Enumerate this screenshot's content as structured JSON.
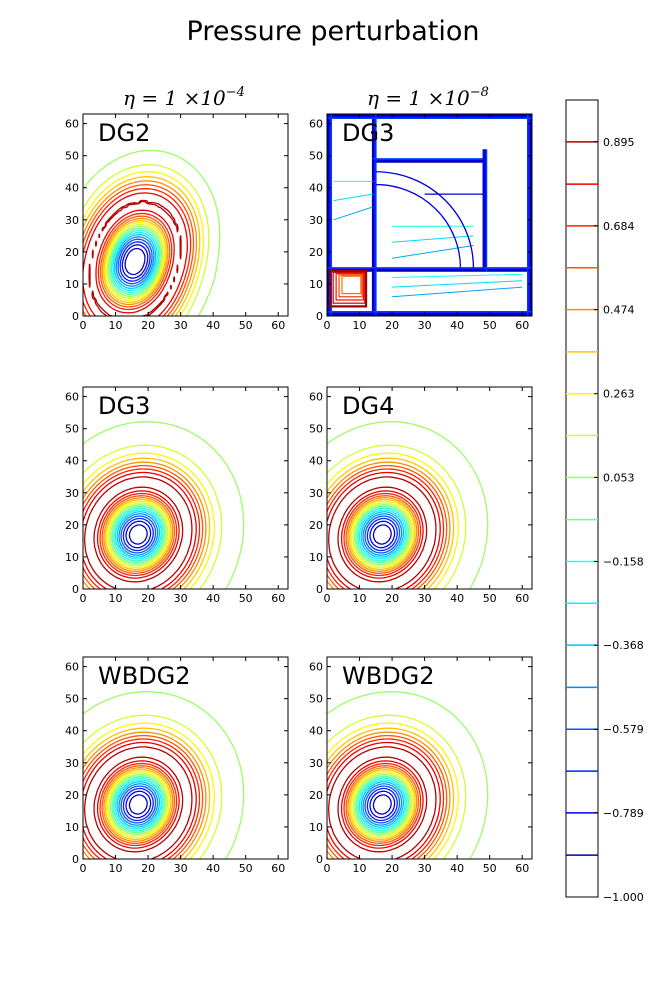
{
  "figure": {
    "title": "Pressure perturbation",
    "column_titles": [
      "η = 1 ×10",
      "η = 1 ×10"
    ],
    "column_title_exponents": [
      "−4",
      "−8"
    ]
  },
  "chart_data": {
    "type": "contour",
    "title": "Pressure perturbation",
    "xlim": [
      0,
      63
    ],
    "ylim": [
      0,
      63
    ],
    "x_ticks": [
      "0",
      "10",
      "20",
      "30",
      "40",
      "50",
      "60"
    ],
    "y_ticks": [
      "0",
      "10",
      "20",
      "30",
      "40",
      "50",
      "60"
    ],
    "panels": [
      {
        "label": "DG2",
        "row": 0,
        "col": 0,
        "kind": "distorted_vortex",
        "center": [
          16,
          17
        ]
      },
      {
        "label": "DG3",
        "row": 0,
        "col": 1,
        "kind": "grid_artifact",
        "center": [
          7,
          7
        ]
      },
      {
        "label": "DG3",
        "row": 1,
        "col": 0,
        "kind": "vortex",
        "center": [
          17,
          17
        ]
      },
      {
        "label": "DG4",
        "row": 1,
        "col": 1,
        "kind": "vortex",
        "center": [
          17,
          17
        ]
      },
      {
        "label": "WBDG2",
        "row": 2,
        "col": 0,
        "kind": "vortex",
        "center": [
          17,
          17
        ]
      },
      {
        "label": "WBDG2",
        "row": 2,
        "col": 1,
        "kind": "vortex",
        "center": [
          17,
          17
        ]
      }
    ],
    "colorbar": {
      "levels": [
        -1.0,
        -0.895,
        -0.789,
        -0.684,
        -0.579,
        -0.474,
        -0.368,
        -0.263,
        -0.158,
        -0.053,
        0.053,
        0.158,
        0.263,
        0.368,
        0.474,
        0.579,
        0.684,
        0.789,
        0.895,
        1.0
      ],
      "labels": [
        "0.895",
        "0.684",
        "0.474",
        "0.263",
        "0.053",
        "−0.158",
        "−0.368",
        "−0.579",
        "−0.789",
        "−1.000"
      ],
      "label_values": [
        0.895,
        0.684,
        0.474,
        0.263,
        0.053,
        -0.158,
        -0.368,
        -0.579,
        -0.789,
        -1.0
      ],
      "colormap": "jet"
    }
  }
}
